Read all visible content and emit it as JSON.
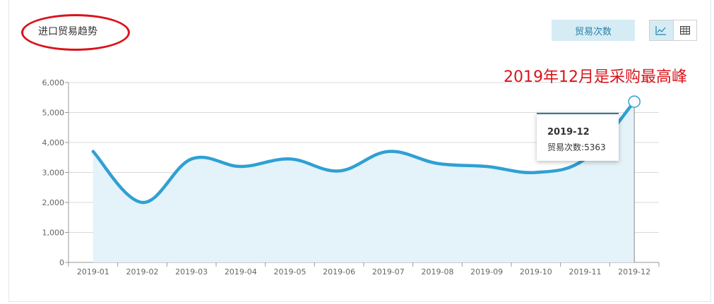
{
  "panel": {
    "title": "进口贸易趋势",
    "metric_button": "贸易次数",
    "view_toggle": {
      "line_icon": "line-chart-icon",
      "table_icon": "table-icon",
      "active": "line"
    }
  },
  "annotation": "2019年12月是采购最高峰",
  "tooltip": {
    "title": "2019-12",
    "label": "贸易次数",
    "separator": ":",
    "value": "5363"
  },
  "colors": {
    "line": "#2fa0d4",
    "area": "#e4f2fa",
    "annotation": "#d9141b",
    "accent_bg": "#d6ecf5",
    "grid": "#d9d9d9"
  },
  "chart_data": {
    "type": "line",
    "categories": [
      "2019-01",
      "2019-02",
      "2019-03",
      "2019-04",
      "2019-05",
      "2019-06",
      "2019-07",
      "2019-08",
      "2019-09",
      "2019-10",
      "2019-11",
      "2019-12"
    ],
    "series": [
      {
        "name": "贸易次数",
        "values": [
          3700,
          2000,
          3450,
          3200,
          3450,
          3050,
          3700,
          3300,
          3200,
          3000,
          3450,
          5363
        ]
      }
    ],
    "ylim": [
      0,
      6000
    ],
    "yticks": [
      0,
      1000,
      2000,
      3000,
      4000,
      5000,
      6000
    ],
    "ytick_labels": [
      "0",
      "1,000",
      "2,000",
      "3,000",
      "4,000",
      "5,000",
      "6,000"
    ],
    "grid": true,
    "smooth": true,
    "area_fill": true,
    "highlighted_category": "2019-12",
    "xlabel": "",
    "ylabel": ""
  }
}
